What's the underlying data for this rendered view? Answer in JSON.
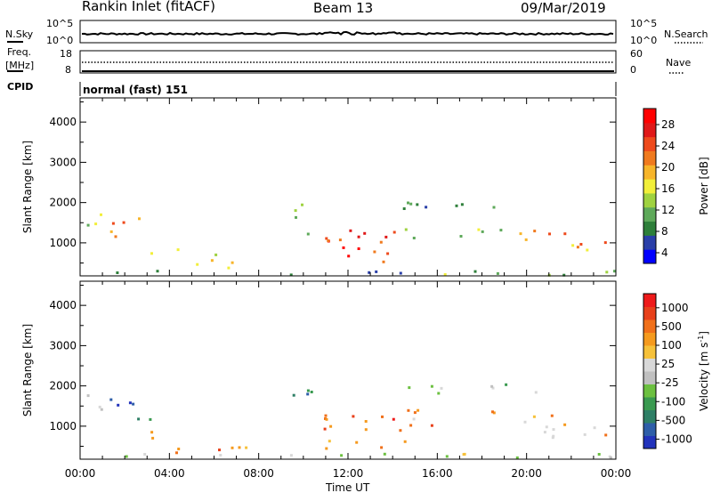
{
  "header": {
    "station": "Rankin Inlet (fitACF)",
    "beam": "Beam 13",
    "date": "09/Mar/2019"
  },
  "noise_panel": {
    "left_label": "N.Sky",
    "right_label": "N.Search",
    "left_ticks": [
      "10^5",
      "10^0"
    ],
    "right_ticks": [
      "10^5",
      "10^0"
    ]
  },
  "freq_panel": {
    "left_label_1": "Freq.",
    "left_label_2": "[MHz]",
    "right_label": "Nave",
    "left_ticks": [
      "18",
      "8"
    ],
    "right_ticks": [
      "60",
      "0"
    ]
  },
  "cpid_panel": {
    "label": "CPID",
    "mode": "normal (fast) 151"
  },
  "chart_data": [
    {
      "type": "heatmap",
      "quantity": "Power",
      "ylabel": "Slant Range [km]",
      "xlabel": "Time UT",
      "x_ticks": [
        "00:00",
        "04:00",
        "08:00",
        "12:00",
        "16:00",
        "20:00",
        "00:00"
      ],
      "y_ticks": [
        1000,
        2000,
        3000,
        4000
      ],
      "ylim": [
        180,
        4600
      ],
      "colorbar": {
        "label": "Power [dB]",
        "ticks": [
          "28",
          "24",
          "20",
          "16",
          "12",
          "8",
          "4"
        ],
        "colors": [
          "#0000ff",
          "#2a3fa8",
          "#2e7f3a",
          "#5ea95a",
          "#9fd240",
          "#f2ef3a",
          "#f7b52a",
          "#f07a1e",
          "#ee4a1c",
          "#e01818",
          "#ff0000"
        ]
      },
      "regions": [
        {
          "t0": 0.0,
          "t1": 1.2,
          "r0": 1400,
          "r1": 1900,
          "level": 0.35
        },
        {
          "t0": 1.2,
          "t1": 3.5,
          "r0": 1100,
          "r1": 1600,
          "level": 0.7
        },
        {
          "t0": 3.0,
          "t1": 4.5,
          "r0": 700,
          "r1": 1000,
          "level": 0.4
        },
        {
          "t0": 4.0,
          "t1": 7.0,
          "r0": 350,
          "r1": 700,
          "level": 0.6
        },
        {
          "t0": 9.5,
          "t1": 10.5,
          "r0": 1200,
          "r1": 2000,
          "level": 0.35
        },
        {
          "t0": 10.5,
          "t1": 14.5,
          "r0": 400,
          "r1": 1300,
          "level": 0.85
        },
        {
          "t0": 14.5,
          "t1": 19.0,
          "r0": 1100,
          "r1": 1400,
          "level": 0.4
        },
        {
          "t0": 14.0,
          "t1": 21.0,
          "r0": 1800,
          "r1": 2050,
          "level": 0.3
        },
        {
          "t0": 19.5,
          "t1": 24.0,
          "r0": 800,
          "r1": 1300,
          "level": 0.65
        },
        {
          "t0": 0.0,
          "t1": 24.0,
          "r0": 180,
          "r1": 300,
          "level": 0.3
        }
      ]
    },
    {
      "type": "heatmap",
      "quantity": "Velocity",
      "ylabel": "Slant Range [km]",
      "xlabel": "Time UT",
      "x_ticks": [
        "00:00",
        "04:00",
        "08:00",
        "12:00",
        "16:00",
        "20:00",
        "00:00"
      ],
      "y_ticks": [
        1000,
        2000,
        3000,
        4000
      ],
      "ylim": [
        180,
        4600
      ],
      "colorbar": {
        "label": "Velocity [m s^-1]",
        "ticks": [
          "1000",
          "500",
          "100",
          "25",
          "-25",
          "-100",
          "-500",
          "-1000"
        ],
        "colors": [
          "#2233bb",
          "#2e5ea8",
          "#2e7f66",
          "#3a9a50",
          "#6cc040",
          "#c0c0c0",
          "#d8d8d8",
          "#f6c13a",
          "#f59a1e",
          "#f0701a",
          "#e8401a",
          "#ee1a1a"
        ]
      },
      "regions": [
        {
          "t0": 0.0,
          "t1": 1.2,
          "r0": 1400,
          "r1": 1900,
          "level": 0.55
        },
        {
          "t0": 1.2,
          "t1": 3.5,
          "r0": 1100,
          "r1": 1700,
          "level": 0.15
        },
        {
          "t0": 3.0,
          "t1": 4.5,
          "r0": 650,
          "r1": 1000,
          "level": 0.7
        },
        {
          "t0": 4.0,
          "t1": 8.0,
          "r0": 300,
          "r1": 650,
          "level": 0.75
        },
        {
          "t0": 9.5,
          "t1": 10.5,
          "r0": 1200,
          "r1": 2000,
          "level": 0.2
        },
        {
          "t0": 10.5,
          "t1": 14.5,
          "r0": 400,
          "r1": 1300,
          "level": 0.8
        },
        {
          "t0": 14.5,
          "t1": 19.0,
          "r0": 1000,
          "r1": 1400,
          "level": 0.75
        },
        {
          "t0": 14.0,
          "t1": 21.0,
          "r0": 1800,
          "r1": 2050,
          "level": 0.45
        },
        {
          "t0": 19.5,
          "t1": 24.0,
          "r0": 700,
          "r1": 1300,
          "level": 0.65
        },
        {
          "t0": 0.0,
          "t1": 24.0,
          "r0": 180,
          "r1": 300,
          "level": 0.5
        }
      ]
    }
  ]
}
